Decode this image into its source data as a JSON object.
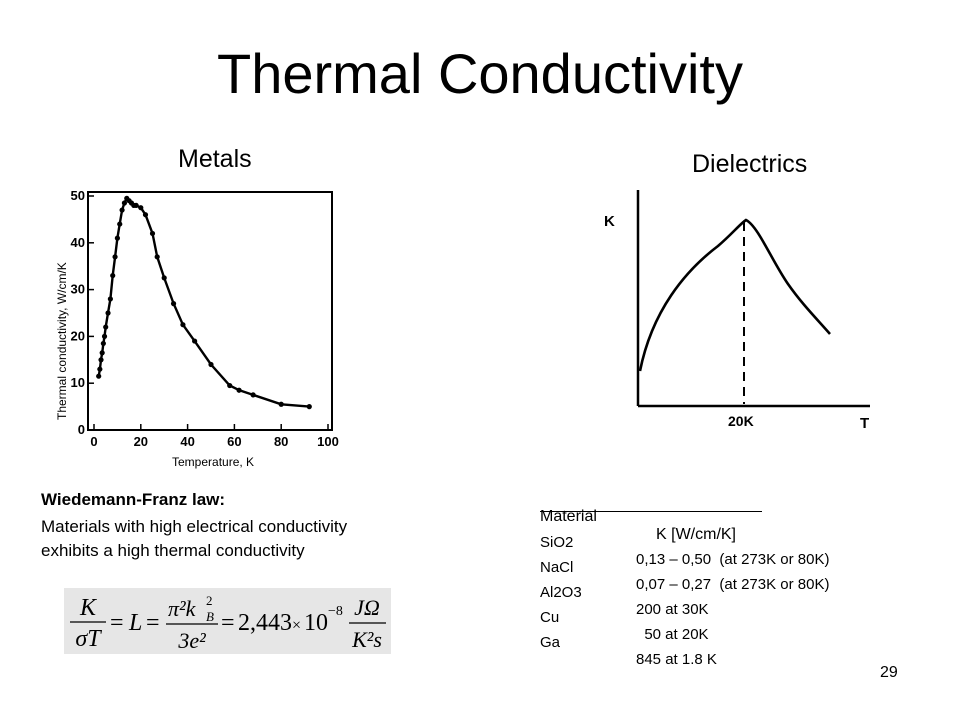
{
  "slide": {
    "title": "Thermal Conductivity",
    "page_number": "29"
  },
  "metals": {
    "heading": "Metals",
    "chart": {
      "ylabel": "Thermal conductivity, W/cm/K",
      "xlabel": "Temperature, K",
      "x_ticks": [
        "0",
        "20",
        "40",
        "60",
        "80",
        "100"
      ],
      "y_ticks": [
        "0",
        "10",
        "20",
        "30",
        "40",
        "50"
      ]
    }
  },
  "dielectrics": {
    "heading": "Dielectrics",
    "chart": {
      "ylabel": "K",
      "xlabel": "T",
      "peak_label": "20K"
    }
  },
  "wiedemann_franz": {
    "title": "Wiedemann-Franz law:",
    "lines": [
      "Materials with high electrical conductivity",
      "exhibits a high thermal conductivity"
    ],
    "formula": {
      "lhs_num": "K",
      "lhs_den": "σT",
      "eq1": "=",
      "L": "L",
      "eq2": "=",
      "mid_num": "π²k",
      "mid_num_sub": "B",
      "mid_num_sup": "2",
      "mid_den": "3e²",
      "eq3": "=",
      "value": "2,443",
      "times": "×",
      "power_base": "10",
      "power_exp": "−8",
      "rhs_num": "JΩ",
      "rhs_den": "K²s"
    }
  },
  "materials_table": {
    "headers": [
      "Material",
      "K [W/cm/K]"
    ],
    "rows": [
      [
        "SiO2",
        "0,13 – 0,50  (at 273K or 80K)"
      ],
      [
        "NaCl",
        "0,07 – 0,27  (at 273K or 80K)"
      ],
      [
        "Al2O3",
        "200 at 30K"
      ],
      [
        "Cu",
        "  50 at 20K"
      ],
      [
        "Ga",
        "845 at 1.8 K"
      ]
    ]
  },
  "chart_data": [
    {
      "type": "scatter",
      "title": "Metals",
      "xlabel": "Temperature, K",
      "ylabel": "Thermal conductivity, W/cm/K",
      "xlim": [
        0,
        100
      ],
      "ylim": [
        0,
        50
      ],
      "x_ticks": [
        0,
        20,
        40,
        60,
        80,
        100
      ],
      "y_ticks": [
        0,
        10,
        20,
        30,
        40,
        50
      ],
      "series": [
        {
          "x": [
            2,
            2.5,
            3,
            3.5,
            4,
            4.5,
            5,
            6,
            7,
            8,
            9,
            10,
            11,
            12,
            13,
            14,
            15,
            16,
            17,
            18,
            20,
            22,
            25,
            27,
            30,
            34,
            38,
            43,
            50,
            58,
            62,
            68,
            80,
            92
          ],
          "y": [
            11.5,
            13,
            15,
            16.5,
            18.5,
            20,
            22,
            25,
            28,
            33,
            37,
            41,
            44,
            47,
            48.5,
            49.5,
            49,
            48.5,
            48,
            48,
            47.5,
            46,
            42,
            37,
            32.5,
            27,
            22.5,
            19,
            14,
            9.5,
            8.5,
            7.5,
            5.5,
            5
          ]
        }
      ],
      "grid": false
    },
    {
      "type": "line",
      "title": "Dielectrics",
      "xlabel": "T",
      "ylabel": "K",
      "annotations": [
        "20K"
      ]
    }
  ]
}
